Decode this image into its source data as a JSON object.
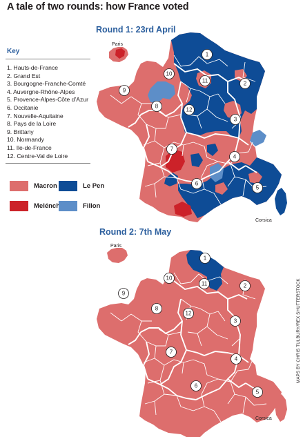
{
  "title": "A tale of two rounds: how France voted",
  "round1": {
    "title": "Round 1: 23rd April"
  },
  "round2": {
    "title": "Round 2: 7th May"
  },
  "key": {
    "title": "Key",
    "regions": [
      "1. Hauts-de-France",
      "2. Grand Est",
      "3. Bourgogne-Franche-Comté",
      "4. Auvergne-Rhône-Alpes",
      "5. Provence-Alpes-Côte d’Azur",
      "6. Occitanie",
      "7. Nouvelle-Aquitaine",
      "8. Pays de la Loire",
      "9. Brittany",
      "10. Normandy",
      "11. Ile-de-France",
      "12. Centre-Val de Loire"
    ]
  },
  "legend": [
    {
      "label": "Macron",
      "color": "#dd6e6d"
    },
    {
      "label": "Le Pen",
      "color": "#0e4c96"
    },
    {
      "label": "Melénchon",
      "color": "#cc2229"
    },
    {
      "label": "Fillon",
      "color": "#5d8ec8"
    }
  ],
  "map_labels": {
    "paris": "Paris",
    "corsica": "Corsica",
    "region_numbers": [
      "1",
      "2",
      "3",
      "4",
      "5",
      "6",
      "7",
      "8",
      "9",
      "10",
      "11",
      "12"
    ]
  },
  "colors": {
    "macron": "#dd6e6d",
    "le_pen": "#0e4c96",
    "melenchon": "#cc2229",
    "fillon": "#5d8ec8",
    "round_title": "#2c5f9e"
  },
  "credit": "MAPS BY CHRIS TULBURY/REX SHUTTERSTOCK"
}
